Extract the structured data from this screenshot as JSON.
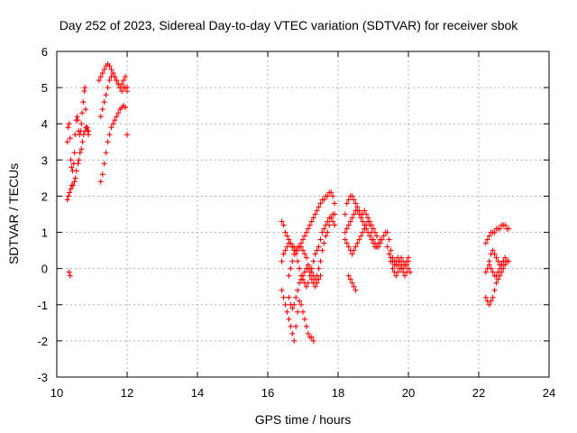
{
  "chart_data": {
    "type": "scatter",
    "title": "Day 252 of 2023, Sidereal Day-to-day VTEC variation (SDTVAR) for receiver sbok",
    "xlabel": "GPS time / hours",
    "ylabel": "SDTVAR / TECUs",
    "xlim": [
      10,
      24
    ],
    "ylim": [
      -3,
      6
    ],
    "x_ticks": [
      "10",
      "12",
      "14",
      "16",
      "18",
      "20",
      "22",
      "24"
    ],
    "y_ticks": [
      "-3",
      "-2",
      "-1",
      "0",
      "1",
      "2",
      "3",
      "4",
      "5",
      "6"
    ],
    "grid": true,
    "marker": "+",
    "color": "#ff0000",
    "series": [
      {
        "x": [
          10.3,
          10.32,
          10.35,
          10.38,
          10.4,
          10.42,
          10.45,
          10.48,
          10.5,
          10.52,
          10.55,
          10.58,
          10.6,
          10.62,
          10.65,
          10.68,
          10.7,
          10.72,
          10.75,
          10.78,
          10.8,
          10.82,
          10.85,
          10.88,
          10.9
        ],
        "y": [
          3.5,
          3.9,
          4.0,
          3.6,
          3.0,
          2.8,
          2.7,
          2.9,
          3.2,
          3.7,
          4.1,
          4.2,
          4.1,
          3.8,
          3.7,
          3.8,
          4.0,
          4.3,
          4.6,
          4.9,
          5.0,
          4.4,
          3.9,
          3.8,
          3.7
        ]
      },
      {
        "x": [
          10.3,
          10.33,
          10.36,
          10.4,
          10.43,
          10.46,
          10.5,
          10.53,
          10.56,
          10.6,
          10.63,
          10.66,
          10.7,
          10.73,
          10.76,
          10.8,
          10.83,
          10.86,
          10.9
        ],
        "y": [
          1.9,
          2.0,
          2.1,
          2.2,
          2.3,
          2.3,
          2.4,
          2.5,
          2.7,
          2.9,
          3.0,
          3.2,
          3.3,
          3.5,
          3.7,
          3.8,
          3.9,
          3.9,
          3.8
        ]
      },
      {
        "x": [
          10.35,
          10.38
        ],
        "y": [
          -0.1,
          -0.2
        ]
      },
      {
        "x": [
          11.2,
          11.25,
          11.3,
          11.35,
          11.4,
          11.45,
          11.5,
          11.55,
          11.6,
          11.65,
          11.7,
          11.75,
          11.8,
          11.85,
          11.9,
          11.95,
          12.0
        ],
        "y": [
          5.2,
          5.3,
          5.4,
          5.5,
          5.6,
          5.65,
          5.6,
          5.5,
          5.4,
          5.3,
          5.2,
          5.1,
          5.0,
          5.1,
          5.2,
          5.3,
          5.0
        ]
      },
      {
        "x": [
          11.25,
          11.3,
          11.35,
          11.4,
          11.45,
          11.5,
          11.55,
          11.6,
          11.65,
          11.7,
          11.75,
          11.8,
          11.85,
          11.9,
          11.95,
          12.0
        ],
        "y": [
          4.2,
          4.4,
          4.6,
          4.8,
          5.0,
          5.2,
          5.3,
          5.4,
          5.3,
          5.2,
          5.1,
          5.0,
          4.9,
          5.0,
          5.0,
          4.9
        ]
      },
      {
        "x": [
          11.25,
          11.3,
          11.35,
          11.4,
          11.45,
          11.5,
          11.55,
          11.6,
          11.65,
          11.7,
          11.75,
          11.8,
          11.85,
          11.9,
          11.95,
          12.0
        ],
        "y": [
          2.4,
          2.6,
          2.9,
          3.2,
          3.5,
          3.7,
          3.9,
          4.0,
          4.1,
          4.2,
          4.3,
          4.4,
          4.45,
          4.5,
          4.45,
          3.7
        ]
      },
      {
        "x": [
          16.4,
          16.45,
          16.5,
          16.55,
          16.6,
          16.65,
          16.7,
          16.75,
          16.8,
          16.85,
          16.9,
          16.95,
          17.0,
          17.05,
          17.1,
          17.15,
          17.2,
          17.25,
          17.3,
          17.35,
          17.4,
          17.45,
          17.5,
          17.55,
          17.6,
          17.65,
          17.7,
          17.75,
          17.8,
          17.85,
          17.9
        ],
        "y": [
          1.3,
          1.2,
          1.0,
          0.9,
          0.8,
          0.7,
          0.6,
          0.6,
          0.5,
          0.5,
          0.6,
          0.7,
          0.8,
          0.9,
          1.0,
          1.1,
          1.2,
          1.3,
          1.4,
          1.5,
          1.6,
          1.7,
          1.8,
          1.9,
          1.9,
          2.0,
          2.0,
          2.1,
          2.1,
          2.0,
          1.8
        ]
      },
      {
        "x": [
          16.4,
          16.45,
          16.5,
          16.55,
          16.6,
          16.65,
          16.7,
          16.75,
          16.8,
          16.85,
          16.9,
          16.95,
          17.0,
          17.05,
          17.1,
          17.15,
          17.2,
          17.25,
          17.3,
          17.35,
          17.4,
          17.45,
          17.5,
          17.55,
          17.6,
          17.65,
          17.7,
          17.75,
          17.8,
          17.85,
          17.9
        ],
        "y": [
          0.2,
          0.4,
          0.5,
          0.6,
          0.7,
          0.7,
          0.6,
          0.5,
          0.4,
          0.2,
          0.0,
          -0.2,
          -0.3,
          -0.4,
          -0.5,
          -0.4,
          -0.2,
          0.0,
          0.2,
          0.4,
          0.5,
          0.6,
          0.8,
          1.0,
          1.1,
          1.2,
          1.3,
          1.4,
          1.4,
          1.3,
          1.2
        ]
      },
      {
        "x": [
          16.4,
          16.45,
          16.5,
          16.55,
          16.6,
          16.65,
          16.7,
          16.75,
          16.8,
          16.85,
          16.9,
          16.95,
          17.0,
          17.05,
          17.1,
          17.15,
          17.2,
          17.25,
          17.3
        ],
        "y": [
          -0.6,
          -0.8,
          -1.0,
          -1.2,
          -1.4,
          -1.6,
          -1.8,
          -2.0,
          -1.6,
          -1.2,
          -0.9,
          -1.0,
          -1.2,
          -1.4,
          -1.6,
          -1.8,
          -1.9,
          -1.9,
          -2.0
        ]
      },
      {
        "x": [
          16.6,
          16.65,
          16.7,
          16.75,
          16.8,
          16.85,
          16.9,
          16.95,
          17.0,
          17.05,
          17.1,
          17.15,
          17.2,
          17.25,
          17.3,
          17.35,
          17.4,
          17.45,
          17.5,
          17.55,
          17.6,
          17.65,
          17.7,
          17.75,
          17.8,
          17.85,
          17.9
        ],
        "y": [
          -0.8,
          -1.0,
          -1.1,
          -1.0,
          -0.8,
          -0.6,
          -0.4,
          -0.3,
          -0.2,
          -0.1,
          0.0,
          0.0,
          0.0,
          -0.1,
          -0.2,
          -0.3,
          -0.2,
          0.0,
          0.2,
          0.5,
          0.7,
          0.9,
          1.0,
          1.2,
          1.4,
          1.5,
          1.5
        ]
      },
      {
        "x": [
          16.6,
          16.65,
          16.7,
          16.75,
          16.8,
          16.85,
          16.9,
          16.95,
          17.0,
          17.05,
          17.1,
          17.15,
          17.2,
          17.25,
          17.3,
          17.35,
          17.4,
          17.45,
          17.5
        ],
        "y": [
          -0.2,
          0.0,
          0.2,
          0.4,
          0.5,
          0.6,
          0.6,
          0.6,
          0.5,
          0.4,
          0.3,
          0.1,
          -0.1,
          -0.3,
          -0.4,
          -0.5,
          -0.4,
          -0.3,
          -0.2
        ]
      },
      {
        "x": [
          18.2,
          18.25,
          18.3,
          18.35,
          18.4,
          18.45,
          18.5,
          18.55,
          18.6,
          18.65,
          18.7,
          18.75,
          18.8,
          18.85,
          18.9,
          18.95,
          19.0,
          19.05,
          19.1,
          19.15,
          19.2,
          19.25,
          19.3,
          19.35,
          19.4,
          19.45,
          19.5,
          19.55,
          19.6,
          19.65,
          19.7,
          19.75,
          19.8,
          19.85,
          19.9,
          19.95,
          20.0
        ],
        "y": [
          1.5,
          1.8,
          1.9,
          2.0,
          2.0,
          1.9,
          1.8,
          1.7,
          1.6,
          1.5,
          1.5,
          1.6,
          1.5,
          1.4,
          1.2,
          1.0,
          0.8,
          0.7,
          0.6,
          0.6,
          0.7,
          0.8,
          0.9,
          1.0,
          1.0,
          0.8,
          0.5,
          0.3,
          0.2,
          0.1,
          0.1,
          0.2,
          0.3,
          0.2,
          0.1,
          0.1,
          0.2
        ]
      },
      {
        "x": [
          18.2,
          18.25,
          18.3,
          18.35,
          18.4,
          18.45,
          18.5,
          18.55,
          18.6,
          18.65,
          18.7,
          18.75,
          18.8,
          18.85,
          18.9,
          18.95,
          19.0,
          19.05,
          19.1,
          19.15,
          19.2
        ],
        "y": [
          1.0,
          1.1,
          1.2,
          1.3,
          1.4,
          1.5,
          1.6,
          1.6,
          1.5,
          1.4,
          1.3,
          1.2,
          1.1,
          1.0,
          0.9,
          0.8,
          0.7,
          0.6,
          0.6,
          0.7,
          0.8
        ]
      },
      {
        "x": [
          18.2,
          18.25,
          18.3,
          18.35,
          18.4,
          18.45,
          18.5,
          18.55,
          18.6,
          18.65,
          18.7,
          18.75,
          18.8,
          18.85,
          18.9,
          18.95,
          19.0,
          19.05,
          19.1
        ],
        "y": [
          0.8,
          0.7,
          0.6,
          0.5,
          0.4,
          0.5,
          0.6,
          0.7,
          0.8,
          0.9,
          1.0,
          1.1,
          1.2,
          1.3,
          1.3,
          1.2,
          1.1,
          1.0,
          0.9
        ]
      },
      {
        "x": [
          18.3,
          18.35,
          18.4,
          18.45,
          18.5
        ],
        "y": [
          -0.2,
          -0.3,
          -0.4,
          -0.5,
          -0.6
        ]
      },
      {
        "x": [
          19.4,
          19.45,
          19.5,
          19.55,
          19.6,
          19.65,
          19.7,
          19.75,
          19.8,
          19.85,
          19.9,
          19.95,
          20.0,
          20.05
        ],
        "y": [
          0.6,
          0.4,
          0.2,
          0.0,
          -0.1,
          -0.2,
          -0.1,
          0.0,
          0.0,
          -0.1,
          -0.2,
          -0.1,
          0.0,
          -0.1
        ]
      },
      {
        "x": [
          19.5,
          19.55,
          19.6,
          19.65,
          19.7,
          19.75,
          19.8,
          19.85,
          19.9,
          19.95,
          20.0
        ],
        "y": [
          0.3,
          0.2,
          0.1,
          0.2,
          0.3,
          0.2,
          0.1,
          0.0,
          0.1,
          0.2,
          0.3
        ]
      },
      {
        "x": [
          22.2,
          22.25,
          22.3,
          22.35,
          22.4,
          22.45,
          22.5,
          22.55,
          22.6,
          22.65,
          22.7,
          22.75,
          22.8,
          22.85
        ],
        "y": [
          0.7,
          0.8,
          0.9,
          1.0,
          1.0,
          1.0,
          1.1,
          1.1,
          1.1,
          1.2,
          1.2,
          1.2,
          1.1,
          1.1
        ]
      },
      {
        "x": [
          22.2,
          22.25,
          22.3,
          22.35,
          22.4,
          22.45,
          22.5,
          22.55,
          22.6,
          22.65,
          22.7,
          22.75,
          22.8,
          22.85
        ],
        "y": [
          -0.1,
          0.0,
          0.2,
          0.4,
          0.5,
          0.4,
          0.3,
          0.2,
          0.1,
          0.1,
          0.2,
          0.3,
          0.2,
          0.2
        ]
      },
      {
        "x": [
          22.2,
          22.25,
          22.3,
          22.35,
          22.4,
          22.45,
          22.5,
          22.55,
          22.6,
          22.65,
          22.7,
          22.75,
          22.8
        ],
        "y": [
          -0.8,
          -0.9,
          -1.0,
          -0.9,
          -0.8,
          -0.6,
          -0.4,
          -0.3,
          -0.2,
          -0.1,
          0.0,
          0.1,
          0.2
        ]
      },
      {
        "x": [
          22.3,
          22.35,
          22.4,
          22.45,
          22.5,
          22.55,
          22.6,
          22.65,
          22.7
        ],
        "y": [
          0.1,
          0.0,
          -0.1,
          -0.2,
          -0.2,
          -0.1,
          0.0,
          0.1,
          0.2
        ]
      }
    ]
  }
}
